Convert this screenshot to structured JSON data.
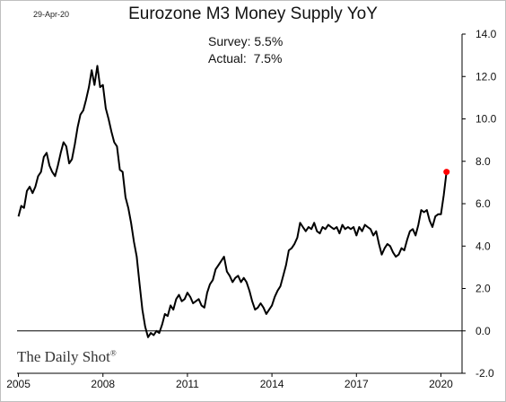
{
  "date_stamp": "29-Apr-20",
  "watermark": "The Daily Shot",
  "watermark_mark": "®",
  "chart_data": {
    "type": "line",
    "title": "Eurozone M3 Money Supply YoY",
    "annotations": [
      "Survey: 5.5%",
      "Actual:  7.5%"
    ],
    "x_ticks": [
      "2005",
      "2008",
      "2011",
      "2014",
      "2017",
      "2020"
    ],
    "y_ticks": [
      "14.0",
      "12.0",
      "10.0",
      "8.0",
      "6.0",
      "4.0",
      "2.0",
      "0.0",
      "-2.0"
    ],
    "ylim": [
      -2.0,
      14.0
    ],
    "xlim": [
      2004.95,
      2020.75
    ],
    "grid": false,
    "zero_line": true,
    "colors": {
      "line": "#000000",
      "highlight": "#ff0000"
    },
    "series": [
      {
        "x": [
          2005.0,
          2005.1,
          2005.2,
          2005.3,
          2005.4,
          2005.5,
          2005.6,
          2005.7,
          2005.8,
          2005.9,
          2006.0,
          2006.1,
          2006.2,
          2006.3,
          2006.4,
          2006.5,
          2006.6,
          2006.7,
          2006.8,
          2006.9,
          2007.0,
          2007.1,
          2007.2,
          2007.3,
          2007.4,
          2007.5,
          2007.6,
          2007.7,
          2007.8,
          2007.9,
          2008.0,
          2008.1,
          2008.2,
          2008.3,
          2008.4,
          2008.5,
          2008.6,
          2008.7,
          2008.8,
          2008.9,
          2009.0,
          2009.1,
          2009.2,
          2009.3,
          2009.4,
          2009.5,
          2009.6,
          2009.7,
          2009.8,
          2009.9,
          2010.0,
          2010.1,
          2010.2,
          2010.3,
          2010.4,
          2010.5,
          2010.6,
          2010.7,
          2010.8,
          2010.9,
          2011.0,
          2011.1,
          2011.2,
          2011.3,
          2011.4,
          2011.5,
          2011.6,
          2011.7,
          2011.8,
          2011.9,
          2012.0,
          2012.1,
          2012.2,
          2012.3,
          2012.4,
          2012.5,
          2012.6,
          2012.7,
          2012.8,
          2012.9,
          2013.0,
          2013.1,
          2013.2,
          2013.3,
          2013.4,
          2013.5,
          2013.6,
          2013.7,
          2013.8,
          2013.9,
          2014.0,
          2014.1,
          2014.2,
          2014.3,
          2014.4,
          2014.5,
          2014.6,
          2014.7,
          2014.8,
          2014.9,
          2015.0,
          2015.1,
          2015.2,
          2015.3,
          2015.4,
          2015.5,
          2015.6,
          2015.7,
          2015.8,
          2015.9,
          2016.0,
          2016.1,
          2016.2,
          2016.3,
          2016.4,
          2016.5,
          2016.6,
          2016.7,
          2016.8,
          2016.9,
          2017.0,
          2017.1,
          2017.2,
          2017.3,
          2017.4,
          2017.5,
          2017.6,
          2017.7,
          2017.8,
          2017.9,
          2018.0,
          2018.1,
          2018.2,
          2018.3,
          2018.4,
          2018.5,
          2018.6,
          2018.7,
          2018.8,
          2018.9,
          2019.0,
          2019.1,
          2019.2,
          2019.3,
          2019.4,
          2019.5,
          2019.6,
          2019.7,
          2019.8,
          2019.9,
          2020.0,
          2020.1,
          2020.2
        ],
        "y": [
          5.4,
          5.9,
          5.8,
          6.6,
          6.8,
          6.5,
          6.8,
          7.3,
          7.5,
          8.2,
          8.4,
          7.8,
          7.5,
          7.3,
          7.8,
          8.4,
          8.9,
          8.7,
          7.9,
          8.1,
          8.8,
          9.6,
          10.2,
          10.4,
          10.9,
          11.5,
          12.3,
          11.6,
          12.5,
          11.5,
          11.6,
          10.5,
          10.0,
          9.4,
          8.9,
          8.7,
          7.6,
          7.5,
          6.3,
          5.8,
          5.1,
          4.2,
          3.5,
          2.2,
          1.0,
          0.2,
          -0.3,
          -0.1,
          -0.2,
          0.0,
          -0.1,
          0.3,
          0.8,
          0.7,
          1.2,
          1.0,
          1.5,
          1.7,
          1.4,
          1.5,
          1.8,
          1.6,
          1.3,
          1.4,
          1.5,
          1.2,
          1.1,
          1.8,
          2.2,
          2.4,
          2.9,
          3.1,
          3.3,
          3.5,
          2.8,
          2.6,
          2.3,
          2.5,
          2.6,
          2.3,
          2.5,
          2.3,
          1.9,
          1.4,
          1.0,
          1.1,
          1.3,
          1.1,
          0.8,
          1.0,
          1.2,
          1.6,
          1.9,
          2.1,
          2.6,
          3.1,
          3.8,
          3.9,
          4.1,
          4.4,
          5.1,
          4.9,
          4.7,
          4.9,
          4.8,
          5.1,
          4.7,
          4.6,
          4.9,
          4.8,
          5.0,
          4.9,
          4.8,
          4.9,
          4.6,
          5.0,
          4.8,
          4.9,
          4.8,
          4.9,
          4.5,
          4.9,
          4.7,
          5.0,
          4.9,
          4.8,
          4.5,
          4.7,
          4.1,
          3.6,
          3.9,
          4.1,
          4.0,
          3.7,
          3.5,
          3.6,
          3.9,
          3.8,
          4.3,
          4.7,
          4.8,
          4.5,
          5.0,
          5.7,
          5.6,
          5.7,
          5.2,
          4.9,
          5.4,
          5.5,
          5.5,
          6.4,
          7.5
        ]
      }
    ],
    "highlight_point": {
      "x": 2020.2,
      "y": 7.5
    }
  }
}
